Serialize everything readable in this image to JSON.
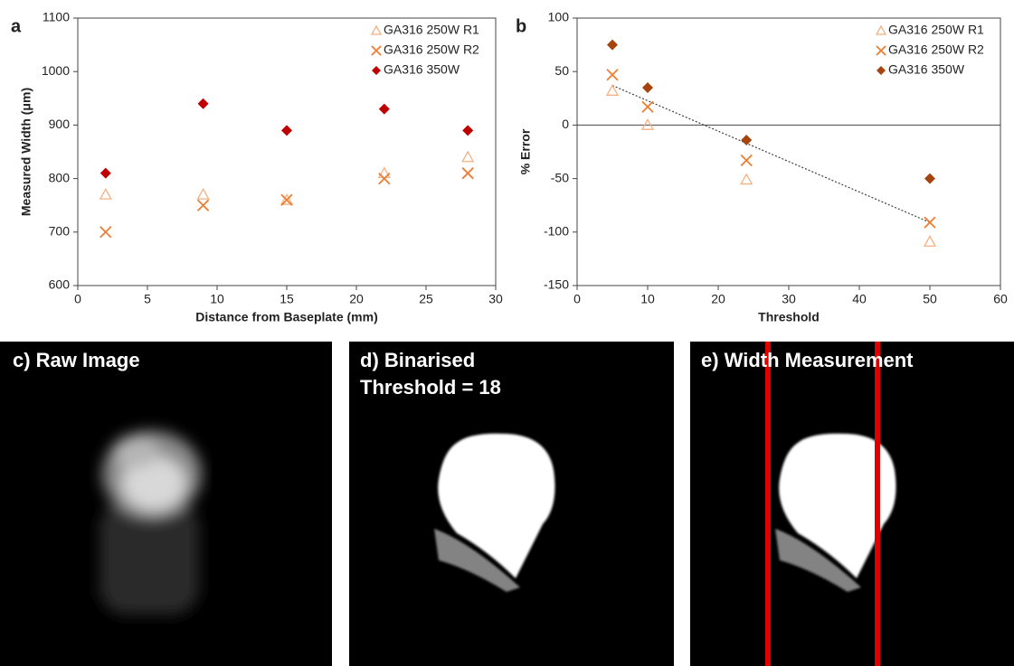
{
  "chart_data": [
    {
      "type": "scatter",
      "panel_label": "a",
      "x_label": "Distance from Baseplate (mm)",
      "y_label": "Measured Width (μm)",
      "x": [
        2,
        9,
        15,
        22,
        28
      ],
      "series": [
        {
          "name": "GA316 250W R1",
          "color": "#f4b183",
          "marker": "triangle",
          "values": [
            770,
            770,
            760,
            810,
            840
          ]
        },
        {
          "name": "GA316 250W R2",
          "color": "#ed7d31",
          "marker": "x",
          "values": [
            700,
            750,
            760,
            800,
            810
          ]
        },
        {
          "name": "GA316 350W",
          "color": "#c00000",
          "marker": "diamond",
          "values": [
            810,
            940,
            890,
            930,
            890
          ]
        }
      ],
      "xlim": [
        0,
        30
      ],
      "xticks": [
        0,
        5,
        10,
        15,
        20,
        25,
        30
      ],
      "ylim": [
        600,
        1100
      ],
      "yticks": [
        600,
        700,
        800,
        900,
        1000,
        1100
      ],
      "legend": "upper right"
    },
    {
      "type": "scatter",
      "panel_label": "b",
      "x_label": "Threshold",
      "y_label": "% Error",
      "x": [
        5,
        10,
        24,
        50
      ],
      "series": [
        {
          "name": "GA316 250W R1",
          "color": "#f4b183",
          "marker": "triangle",
          "values": [
            32,
            0,
            -51,
            -109
          ]
        },
        {
          "name": "GA316 250W R2",
          "color": "#ed7d31",
          "marker": "x",
          "values": [
            47,
            17,
            -33,
            -91
          ]
        },
        {
          "name": "GA316 350W",
          "color": "#a5440e",
          "marker": "diamond",
          "values": [
            75,
            35,
            -14,
            -50
          ]
        }
      ],
      "trendline": {
        "x": [
          5,
          50
        ],
        "values": [
          37,
          -91
        ],
        "color": "#404040"
      },
      "zero_line": true,
      "xlim": [
        0,
        60
      ],
      "xticks": [
        0,
        10,
        20,
        30,
        40,
        50,
        60
      ],
      "ylim": [
        -150,
        100
      ],
      "yticks": [
        -150,
        -100,
        -50,
        0,
        50,
        100
      ],
      "legend": "upper right"
    }
  ],
  "panels": [
    {
      "title": "c) Raw Image"
    },
    {
      "title": "d) Binarised",
      "subtitle": "Threshold = 18"
    },
    {
      "title": "e) Width Measurement"
    }
  ]
}
